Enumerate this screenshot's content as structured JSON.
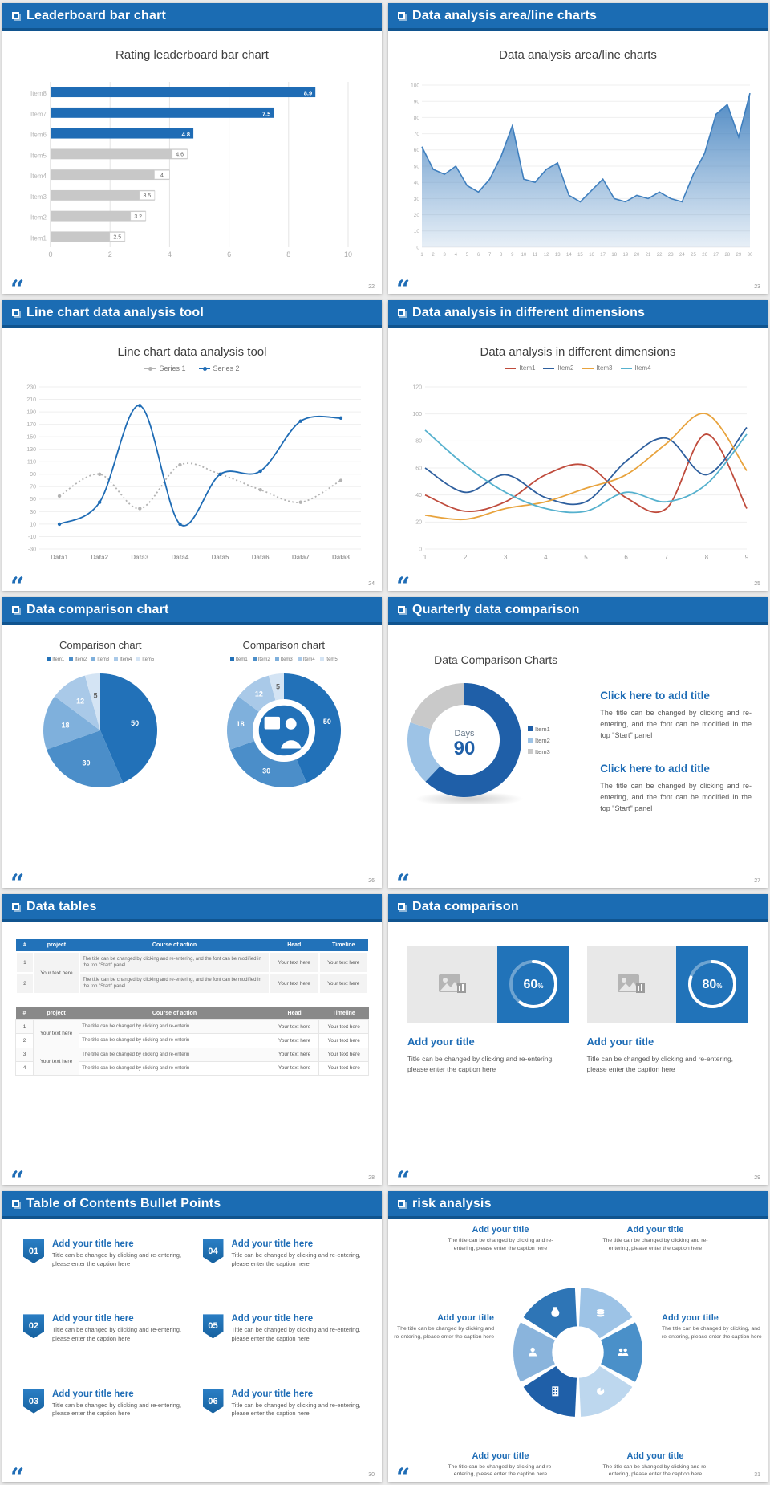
{
  "footer_quote": "“",
  "theme": {
    "header_blue": "#1b6cb3",
    "accent_blue": "#1f6db6",
    "bar_gray": "#c8c8c8",
    "table_gray_header": "#898989"
  },
  "slides": [
    {
      "header": "Leaderboard bar chart",
      "page": "22",
      "chart": {
        "type": "hbar",
        "title": "Rating leaderboard bar chart",
        "rows": [
          {
            "label": "Item8",
            "value": 8.9,
            "blue": true
          },
          {
            "label": "Item7",
            "value": 7.5,
            "blue": true
          },
          {
            "label": "Item6",
            "value": 4.8,
            "blue": true
          },
          {
            "label": "Item5",
            "value": 4.6,
            "blue": false
          },
          {
            "label": "Item4",
            "value": 4,
            "blue": false
          },
          {
            "label": "Item3",
            "value": 3.5,
            "blue": false
          },
          {
            "label": "Item2",
            "value": 3.2,
            "blue": false
          },
          {
            "label": "Item1",
            "value": 2.5,
            "blue": false
          }
        ],
        "xticks": [
          0,
          2,
          4,
          6,
          8,
          10
        ],
        "xmax": 10,
        "blue": "#1f6cb5",
        "gray": "#c8c8c8"
      }
    },
    {
      "header": "Data analysis area/line charts",
      "page": "23",
      "chart": {
        "type": "area",
        "title": "Data analysis area/line charts",
        "values": [
          62,
          48,
          45,
          50,
          38,
          34,
          42,
          56,
          75,
          42,
          40,
          48,
          52,
          32,
          28,
          35,
          42,
          30,
          28,
          32,
          30,
          34,
          30,
          28,
          45,
          58,
          82,
          88,
          68,
          95
        ],
        "ymin": 0,
        "ymax": 100,
        "ystep": 10,
        "color": "#3f7fbe"
      }
    },
    {
      "header": "Line chart data analysis tool",
      "page": "24",
      "chart": {
        "type": "lines",
        "title": "Line chart data analysis tool",
        "xlabels": [
          "Data1",
          "Data2",
          "Data3",
          "Data4",
          "Data5",
          "Data6",
          "Data7",
          "Data8"
        ],
        "centered": true,
        "markers": true,
        "smooth": true,
        "ymin": -30,
        "ymax": 230,
        "ystep": 20,
        "series": [
          {
            "name": "Series 1",
            "color": "#b3b3b3",
            "dash": "2 3",
            "values": [
              55,
              90,
              35,
              105,
              90,
              65,
              45,
              80
            ]
          },
          {
            "name": "Series 2",
            "color": "#1f6cb5",
            "values": [
              10,
              45,
              200,
              10,
              90,
              95,
              175,
              180
            ]
          }
        ]
      }
    },
    {
      "header": "Data analysis in different dimensions",
      "page": "25",
      "chart": {
        "type": "lines",
        "title": "Data analysis in different dimensions",
        "xlabels": [
          "1",
          "2",
          "3",
          "4",
          "5",
          "6",
          "7",
          "8",
          "9"
        ],
        "centered": false,
        "markers": false,
        "smooth": true,
        "ymin": 0,
        "ymax": 120,
        "ystep": 20,
        "series": [
          {
            "name": "Item1",
            "color": "#bf4b3c",
            "values": [
              40,
              28,
              35,
              55,
              62,
              38,
              30,
              85,
              30
            ]
          },
          {
            "name": "Item2",
            "color": "#2e5f9e",
            "values": [
              60,
              42,
              55,
              38,
              35,
              65,
              82,
              55,
              90
            ]
          },
          {
            "name": "Item3",
            "color": "#e8a33d",
            "values": [
              25,
              22,
              30,
              35,
              45,
              55,
              78,
              100,
              58
            ]
          },
          {
            "name": "Item4",
            "color": "#56b1ce",
            "values": [
              88,
              62,
              42,
              30,
              28,
              42,
              35,
              48,
              85
            ]
          }
        ]
      }
    },
    {
      "header": "Data comparison chart",
      "page": "26",
      "left": {
        "title": "Comparison chart",
        "legend": [
          "Item1",
          "Item2",
          "Item3",
          "Item4",
          "Item5"
        ],
        "chart": {
          "type": "pie",
          "values": [
            50,
            30,
            18,
            12,
            5
          ],
          "colors": [
            "#2271b8",
            "#4b8ec9",
            "#7fb0dc",
            "#a9c9e8",
            "#d4e4f4"
          ],
          "labelColors": [
            "#fff",
            "#fff",
            "#fff",
            "#fff",
            "#666"
          ]
        }
      },
      "right": {
        "title": "Comparison chart",
        "legend": [
          "Item1",
          "Item2",
          "Item3",
          "Item4",
          "Item5"
        ],
        "chart": {
          "type": "pie",
          "inner": 0.55,
          "icon": "person",
          "values": [
            50,
            30,
            18,
            12,
            5
          ],
          "colors": [
            "#2271b8",
            "#4b8ec9",
            "#7fb0dc",
            "#a9c9e8",
            "#d4e4f4"
          ],
          "labelColors": [
            "#fff",
            "#fff",
            "#fff",
            "#fff",
            "#666"
          ]
        }
      }
    },
    {
      "header": "Quarterly data comparison",
      "page": "27",
      "chart_title": "Data Comparison Charts",
      "chart": {
        "type": "pie",
        "inner": 0.62,
        "shadow": true,
        "hideLabels": true,
        "values": [
          62,
          18,
          20
        ],
        "colors": [
          "#1f5fa8",
          "#9dc3e6",
          "#c9c9c9"
        ],
        "center": {
          "top": "Days",
          "big": "90",
          "color": "#1f5fa8"
        }
      },
      "legend": [
        "Item1",
        "Item2",
        "Item3"
      ],
      "blocks": [
        {
          "title": "Click here to add title",
          "body": "The title can be changed by clicking and re-entering, and the font can be modified in the top \"Start\" panel"
        },
        {
          "title": "Click here to add title",
          "body": "The title can be changed by clicking and re-entering, and the font can be modified in the top \"Start\" panel"
        }
      ]
    },
    {
      "header": "Data tables",
      "page": "28",
      "tableA": {
        "headers": [
          "#",
          "project",
          "Course of action",
          "Head",
          "Timeline"
        ],
        "project": "Your text here",
        "rows": [
          {
            "num": "1",
            "action": "The title can be changed by clicking and re-entering, and the font can be modified in the top \"Start\" panel",
            "head": "Your text here",
            "timeline": "Your text here"
          },
          {
            "num": "2",
            "action": "The title can be changed by clicking and re-entering, and the font can be modified in the top \"Start\" panel",
            "head": "Your text here",
            "timeline": "Your text here"
          }
        ]
      },
      "tableB": {
        "headers": [
          "#",
          "project",
          "Course of action",
          "Head",
          "Timeline"
        ],
        "project1": "Your text here",
        "project2": "Your text here",
        "rows": [
          {
            "num": "1",
            "action": "The title can be changed by clicking and re-enterin",
            "head": "Your text here",
            "timeline": "Your text here"
          },
          {
            "num": "2",
            "action": "The title can be changed by clicking and re-enterin",
            "head": "Your text here",
            "timeline": "Your text here"
          },
          {
            "num": "3",
            "action": "The title can be changed by clicking and re-enterin",
            "head": "Your text here",
            "timeline": "Your text here"
          },
          {
            "num": "4",
            "action": "The title can be changed by clicking and re-enterin",
            "head": "Your text here",
            "timeline": "Your text here"
          }
        ]
      }
    },
    {
      "header": "Data comparison",
      "page": "29",
      "cards": [
        {
          "ring": {
            "type": "ring",
            "value": 60
          },
          "title": "Add your title",
          "caption": "Title can be changed by clicking and re-entering, please enter the caption here"
        },
        {
          "ring": {
            "type": "ring",
            "value": 80
          },
          "title": "Add your title",
          "caption": "Title can be changed by clicking and re-entering, please enter the caption here"
        }
      ]
    },
    {
      "header": "Table of Contents Bullet Points",
      "page": "30",
      "items": [
        {
          "num": "01",
          "title": "Add your title here",
          "caption": "Title can be changed by clicking and re-entering, please enter the caption here"
        },
        {
          "num": "02",
          "title": "Add your title here",
          "caption": "Title can be changed by clicking and re-entering, please enter the caption here"
        },
        {
          "num": "03",
          "title": "Add your title here",
          "caption": "Title can be changed by clicking and re-entering, please enter the caption here"
        },
        {
          "num": "04",
          "title": "Add your title here",
          "caption": "Title can be changed by clicking and re-entering, please enter the caption here"
        },
        {
          "num": "05",
          "title": "Add your title here",
          "caption": "Title can be changed by clicking and re-entering, please enter the caption here"
        },
        {
          "num": "06",
          "title": "Add your title here",
          "caption": "Title can be changed by clicking and re-entering, please enter the caption here"
        }
      ]
    },
    {
      "header": "risk analysis",
      "page": "31",
      "diagram": {
        "type": "aperture",
        "segments": [
          {
            "color": "#9dc3e6",
            "icon": "coins"
          },
          {
            "color": "#4a90c9",
            "icon": "users"
          },
          {
            "color": "#bdd7ee",
            "icon": "piechart"
          },
          {
            "color": "#1f5fa8",
            "icon": "building"
          },
          {
            "color": "#8ab4dc",
            "icon": "user"
          },
          {
            "color": "#2e75b6",
            "icon": "moneybag"
          }
        ]
      },
      "items": [
        {
          "title": "Add your title",
          "caption": "The title can be changed by clicking and re-entering, please enter the caption here"
        },
        {
          "title": "Add your title",
          "caption": "The title can be changed by clicking and re-entering, please enter the caption here"
        },
        {
          "title": "Add your title",
          "caption": "The title can be changed by clicking and re-entering, please enter the caption here"
        },
        {
          "title": "Add your title",
          "caption": "The title can be changed by clicking, and re-entering, please enter the caption here"
        },
        {
          "title": "Add your title",
          "caption": "The title can be changed by clicking and re-entering, please enter the caption here"
        },
        {
          "title": "Add your title",
          "caption": "The title can be changed by clicking and re-entering, please enter the caption here"
        }
      ]
    }
  ]
}
